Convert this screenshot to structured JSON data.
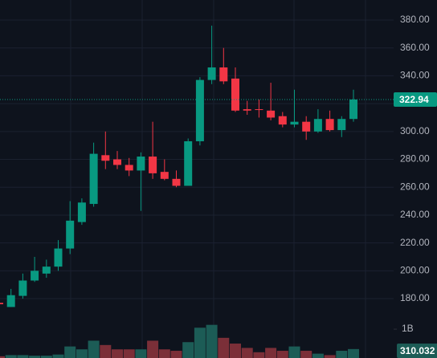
{
  "chart_data": [
    {
      "type": "candlestick",
      "up_color": "#089981",
      "down_color": "#f23645",
      "open": [
        177,
        174,
        182,
        193,
        198,
        203,
        216,
        235,
        248,
        283,
        280,
        276,
        272,
        282,
        271,
        266,
        261,
        293,
        337,
        346,
        338,
        316,
        316,
        315,
        311,
        305,
        307,
        300,
        309,
        301,
        309
      ],
      "high": [
        178,
        187,
        198,
        210,
        208,
        222,
        250,
        252,
        292,
        300,
        286,
        281,
        285,
        307,
        280,
        272,
        295,
        339,
        376,
        360,
        346,
        322,
        323,
        335,
        314,
        330,
        311,
        316,
        315,
        311,
        330
      ],
      "low": [
        175,
        174,
        180,
        192,
        195,
        200,
        212,
        233,
        246,
        273,
        273,
        268,
        243,
        266,
        265,
        260,
        261,
        290,
        334,
        334,
        314,
        312,
        310,
        308,
        303,
        303,
        294,
        299,
        300,
        296,
        307
      ],
      "close": [
        176,
        182.5,
        193,
        200,
        203,
        216,
        236,
        249,
        284,
        279,
        276,
        272,
        282,
        270,
        266,
        261,
        293,
        337,
        346,
        336,
        315,
        315,
        315.5,
        310,
        305,
        307,
        300,
        309,
        301,
        309,
        322.94
      ],
      "ylim": [
        163.9,
        394.4
      ],
      "yticks": [
        {
          "value": 180,
          "label": "180.00"
        },
        {
          "value": 200,
          "label": "200.00"
        },
        {
          "value": 220,
          "label": "220.00"
        },
        {
          "value": 240,
          "label": "240.00"
        },
        {
          "value": 260,
          "label": "260.00"
        },
        {
          "value": 280,
          "label": "280.00"
        },
        {
          "value": 300,
          "label": "300.00"
        },
        {
          "value": 320,
          "label": "320.00"
        },
        {
          "value": 340,
          "label": "340.00"
        },
        {
          "value": 360,
          "label": "360.00"
        },
        {
          "value": 380,
          "label": "380.00"
        }
      ],
      "last_price": {
        "value": 322.94,
        "label": "322.94"
      },
      "grid": true
    },
    {
      "type": "volume",
      "up_color": "#1c5c56",
      "down_color": "#7b2f38",
      "values": [
        0.06,
        0.1,
        0.1,
        0.08,
        0.08,
        0.12,
        0.4,
        0.3,
        0.6,
        0.45,
        0.3,
        0.3,
        0.3,
        0.6,
        0.3,
        0.25,
        0.55,
        1.05,
        1.15,
        0.7,
        0.5,
        0.35,
        0.2,
        0.35,
        0.25,
        0.4,
        0.25,
        0.15,
        0.1,
        0.25,
        0.310032
      ],
      "value_labels_last": "310.032",
      "ylim": [
        0,
        1.28
      ],
      "yticks": [
        {
          "value": 1,
          "label": "1B"
        }
      ]
    }
  ]
}
